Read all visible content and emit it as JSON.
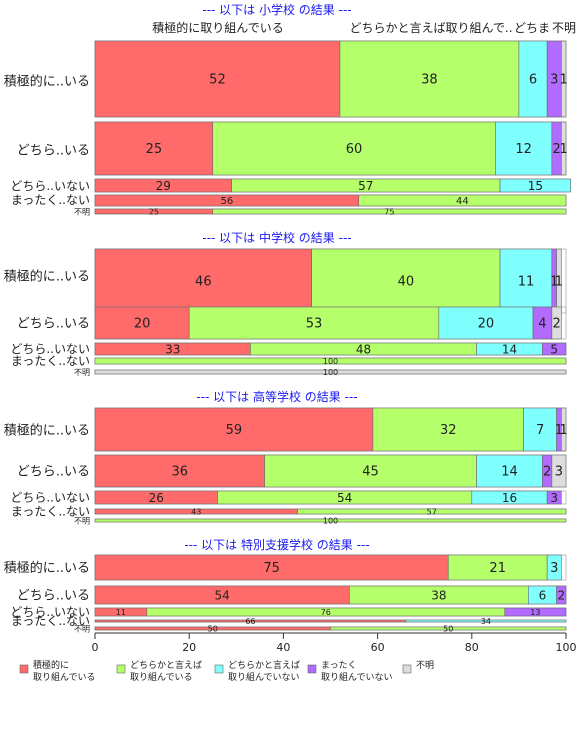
{
  "chart_data": {
    "type": "bar",
    "orientation": "horizontal",
    "stacked": true,
    "xlim": [
      0,
      100
    ],
    "x_ticks": [
      "0",
      "20",
      "40",
      "60",
      "80",
      "100"
    ],
    "column_header": [
      "積極的に取り組んでいる",
      "どちらかと言えば取り組んで..",
      "どちま",
      "不明"
    ],
    "categories": [
      "積極的に..いる",
      "どちら..いる",
      "どちら..いない",
      "まったく..ない",
      "不明"
    ],
    "series": [
      {
        "key": "s1",
        "color": "#FF6B6B"
      },
      {
        "key": "s2",
        "color": "#B5FF6B"
      },
      {
        "key": "s3",
        "color": "#80FFFF"
      },
      {
        "key": "s4",
        "color": "#B26BFF"
      },
      {
        "key": "s5",
        "color": "#DDDDDD"
      }
    ],
    "legend": {
      "placement": "bottom",
      "entries": [
        {
          "line1": "積極的に",
          "line2": "取り組んでいる"
        },
        {
          "line1": "どちらかと言えば",
          "line2": "取り組んでいる"
        },
        {
          "line1": "どちらかと言えば",
          "line2": "取り組んでいない"
        },
        {
          "line1": "まったく",
          "line2": "取り組んでいない"
        },
        {
          "line1": "不明",
          "line2": ""
        }
      ]
    },
    "panels": [
      {
        "title": "--- 以下は 小学校 の結果 ---",
        "rows": [
          {
            "values": [
              52,
              38,
              6,
              3,
              1
            ]
          },
          {
            "values": [
              25,
              60,
              12,
              2,
              1
            ]
          },
          {
            "values": [
              29,
              57,
              15,
              0,
              0
            ]
          },
          {
            "values": [
              56,
              44,
              0,
              0,
              0
            ]
          },
          {
            "values": [
              25,
              75,
              0,
              0,
              0
            ]
          }
        ]
      },
      {
        "title": "--- 以下は 中学校 の結果 ---",
        "rows": [
          {
            "values": [
              46,
              40,
              11,
              1,
              1
            ]
          },
          {
            "values": [
              20,
              53,
              20,
              4,
              2
            ]
          },
          {
            "values": [
              33,
              48,
              14,
              5,
              0
            ]
          },
          {
            "values": [
              0,
              100,
              0,
              0,
              0
            ]
          },
          {
            "values": [
              0,
              0,
              0,
              0,
              100
            ]
          }
        ]
      },
      {
        "title": "--- 以下は 高等学校 の結果 ---",
        "rows": [
          {
            "values": [
              59,
              32,
              7,
              1,
              1
            ]
          },
          {
            "values": [
              36,
              45,
              14,
              2,
              3
            ]
          },
          {
            "values": [
              26,
              54,
              16,
              3,
              0
            ]
          },
          {
            "values": [
              43,
              57,
              0,
              0,
              0
            ]
          },
          {
            "values": [
              0,
              100,
              0,
              0,
              0
            ]
          }
        ]
      },
      {
        "title": "--- 以下は 特別支援学校 の結果 ---",
        "rows": [
          {
            "values": [
              75,
              21,
              3,
              0,
              0
            ]
          },
          {
            "values": [
              54,
              38,
              6,
              2,
              0
            ]
          },
          {
            "values": [
              11,
              76,
              0,
              13,
              0
            ]
          },
          {
            "values": [
              66,
              0,
              34,
              0,
              0
            ]
          },
          {
            "values": [
              50,
              50,
              0,
              0,
              0
            ]
          }
        ]
      }
    ]
  }
}
